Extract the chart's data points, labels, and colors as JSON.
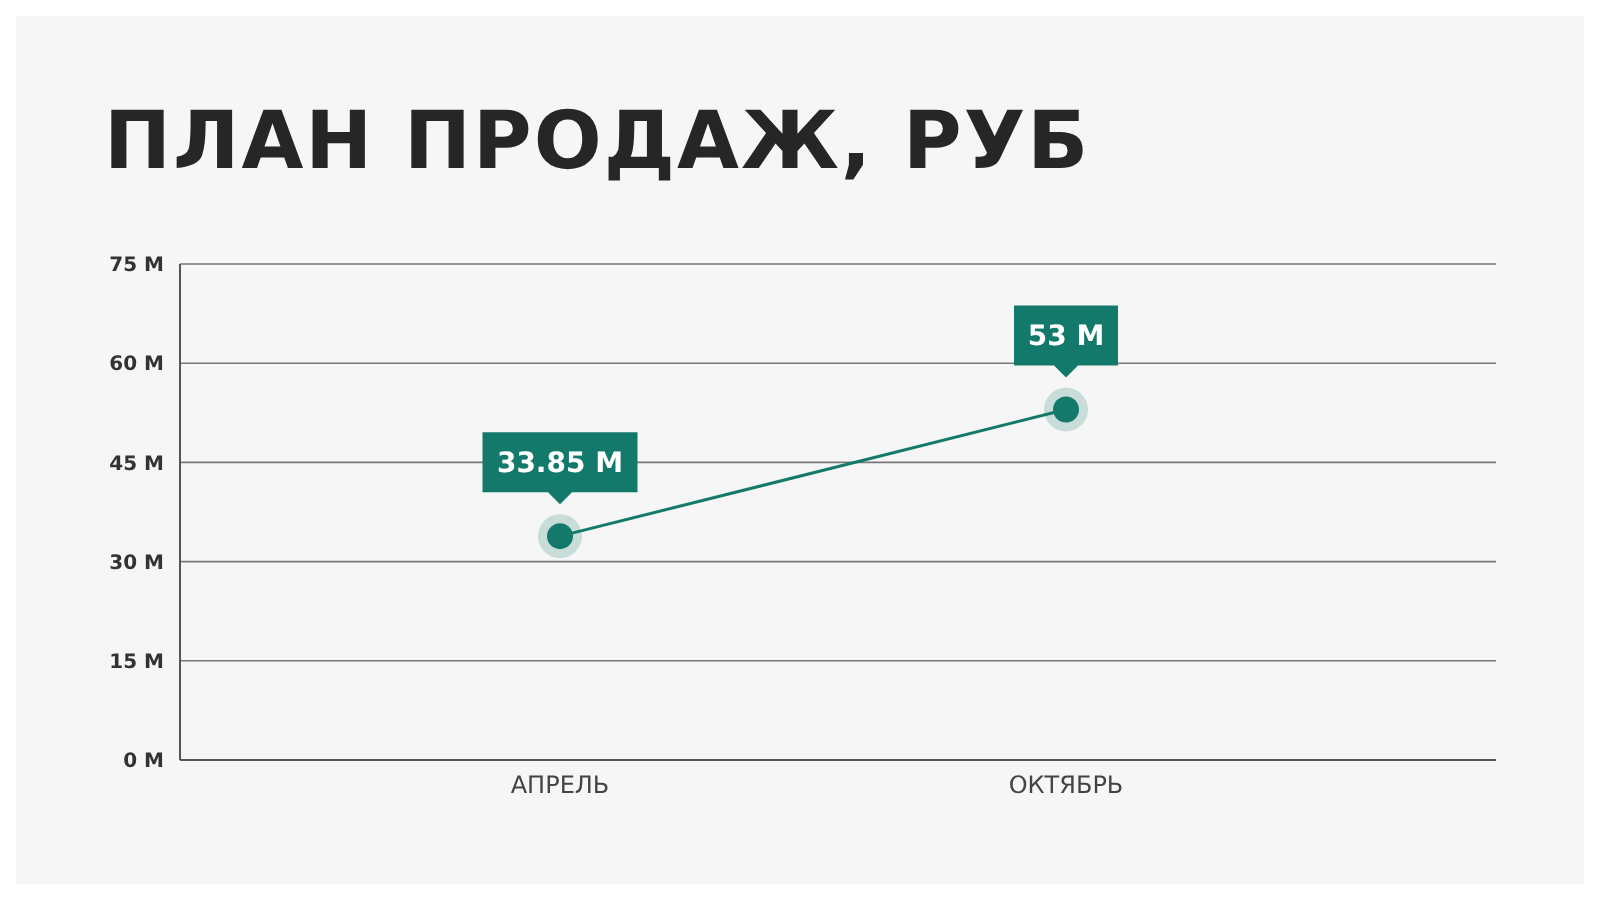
{
  "chart_data": {
    "type": "line",
    "title": "ПЛАН ПРОДАЖ, РУБ",
    "categories": [
      "АПРЕЛЬ",
      "ОКТЯБРЬ"
    ],
    "series": [
      {
        "color": "#137a6b",
        "values": [
          33.85,
          53
        ],
        "value_labels": [
          "33.85 M",
          "53 M"
        ]
      }
    ],
    "ylim": [
      0,
      75
    ],
    "yticks": [
      {
        "value": 0,
        "label": "0 M"
      },
      {
        "value": 15,
        "label": "15 M"
      },
      {
        "value": 30,
        "label": "30 M"
      },
      {
        "value": 45,
        "label": "45 M"
      },
      {
        "value": 60,
        "label": "60 M"
      },
      {
        "value": 75,
        "label": "75 M"
      }
    ],
    "grid": "y",
    "marker": "circle",
    "legend": false
  }
}
